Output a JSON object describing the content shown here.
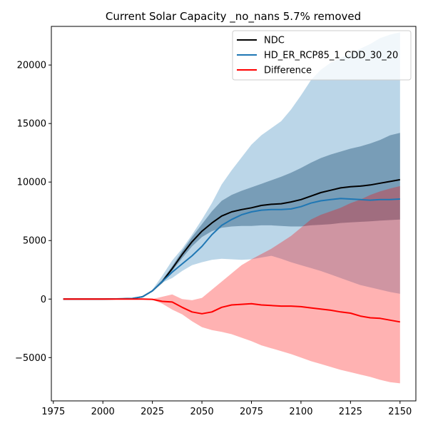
{
  "chart_data": {
    "type": "area",
    "title": "Current Solar Capacity _no_nans 5.7% removed",
    "xlabel": "",
    "ylabel": "",
    "xlim": [
      1974,
      2158
    ],
    "ylim": [
      -8700,
      23300
    ],
    "xticks": [
      1975,
      2000,
      2025,
      2050,
      2075,
      2100,
      2125,
      2150
    ],
    "yticks": [
      -5000,
      0,
      5000,
      10000,
      15000,
      20000
    ],
    "tick_labels": {
      "x": [
        "1975",
        "2000",
        "2025",
        "2050",
        "2075",
        "2100",
        "2125",
        "2150"
      ],
      "y": [
        "−5000",
        "0",
        "5000",
        "10000",
        "15000",
        "20000"
      ]
    },
    "grid": false,
    "legend": {
      "position": "top-right",
      "entries": [
        "NDC",
        "HD_ER_RCP85_1_CDD_30_20",
        "Difference"
      ]
    },
    "x": [
      1980,
      1990,
      2000,
      2010,
      2015,
      2020,
      2025,
      2030,
      2035,
      2040,
      2045,
      2050,
      2055,
      2060,
      2065,
      2070,
      2075,
      2080,
      2085,
      2090,
      2095,
      2100,
      2105,
      2110,
      2115,
      2120,
      2125,
      2130,
      2135,
      2140,
      2145,
      2150
    ],
    "series": [
      {
        "name": "NDC",
        "color": "#000000",
        "values": [
          0,
          0,
          0,
          20,
          50,
          200,
          700,
          1500,
          2600,
          3800,
          4900,
          5800,
          6500,
          7100,
          7450,
          7650,
          7800,
          8000,
          8100,
          8150,
          8300,
          8500,
          8800,
          9100,
          9300,
          9500,
          9600,
          9650,
          9750,
          9900,
          10050,
          10200
        ],
        "band_lower": [
          0,
          0,
          0,
          20,
          50,
          200,
          650,
          1350,
          2400,
          3500,
          4500,
          5300,
          5800,
          6100,
          6200,
          6250,
          6250,
          6300,
          6300,
          6250,
          6200,
          6200,
          6300,
          6350,
          6400,
          6500,
          6550,
          6600,
          6650,
          6700,
          6750,
          6800
        ],
        "band_upper": [
          0,
          0,
          0,
          20,
          50,
          200,
          750,
          1650,
          2800,
          4100,
          5300,
          6400,
          7500,
          8400,
          8900,
          9250,
          9550,
          9850,
          10150,
          10450,
          10800,
          11200,
          11650,
          12050,
          12350,
          12600,
          12850,
          13050,
          13300,
          13600,
          14000,
          14200
        ],
        "band_color": "#405e74"
      },
      {
        "name": "HD_ER_RCP85_1_CDD_30_20",
        "color": "#1f77b4",
        "values": [
          0,
          0,
          0,
          20,
          50,
          200,
          700,
          1500,
          2300,
          3000,
          3700,
          4500,
          5500,
          6300,
          6800,
          7200,
          7450,
          7600,
          7650,
          7650,
          7700,
          7900,
          8200,
          8400,
          8500,
          8600,
          8550,
          8500,
          8450,
          8500,
          8500,
          8550
        ],
        "band_lower": [
          0,
          0,
          0,
          20,
          50,
          200,
          700,
          1400,
          1800,
          2400,
          2900,
          3150,
          3350,
          3450,
          3400,
          3350,
          3400,
          3550,
          3700,
          3450,
          3150,
          2900,
          2650,
          2400,
          2100,
          1800,
          1500,
          1200,
          1000,
          800,
          600,
          450
        ],
        "band_upper": [
          0,
          0,
          0,
          20,
          50,
          200,
          800,
          2000,
          3300,
          4300,
          5500,
          6800,
          8200,
          9800,
          11000,
          12100,
          13200,
          14000,
          14600,
          15200,
          16200,
          17400,
          18700,
          19600,
          20200,
          20600,
          21000,
          21400,
          21800,
          22300,
          22600,
          22800
        ],
        "band_color": "#1f77b4"
      },
      {
        "name": "Difference",
        "color": "#ff0000",
        "values": [
          0,
          0,
          0,
          0,
          0,
          0,
          -20,
          -200,
          -250,
          -700,
          -1100,
          -1250,
          -1100,
          -700,
          -500,
          -450,
          -400,
          -500,
          -550,
          -600,
          -600,
          -650,
          -750,
          -850,
          -950,
          -1100,
          -1200,
          -1450,
          -1600,
          -1650,
          -1800,
          -1950
        ],
        "band_lower": [
          0,
          0,
          0,
          0,
          0,
          0,
          -50,
          -400,
          -900,
          -1300,
          -1900,
          -2400,
          -2650,
          -2800,
          -3000,
          -3300,
          -3600,
          -3950,
          -4200,
          -4450,
          -4700,
          -5000,
          -5300,
          -5550,
          -5800,
          -6050,
          -6250,
          -6450,
          -6650,
          -6900,
          -7100,
          -7200
        ],
        "band_upper": [
          0,
          0,
          0,
          0,
          0,
          0,
          0,
          200,
          400,
          0,
          -100,
          100,
          800,
          1500,
          2200,
          2900,
          3400,
          3850,
          4300,
          4850,
          5400,
          6100,
          6800,
          7200,
          7500,
          7800,
          8200,
          8500,
          8900,
          9200,
          9450,
          9650
        ],
        "band_color": "#ff0000"
      }
    ]
  }
}
